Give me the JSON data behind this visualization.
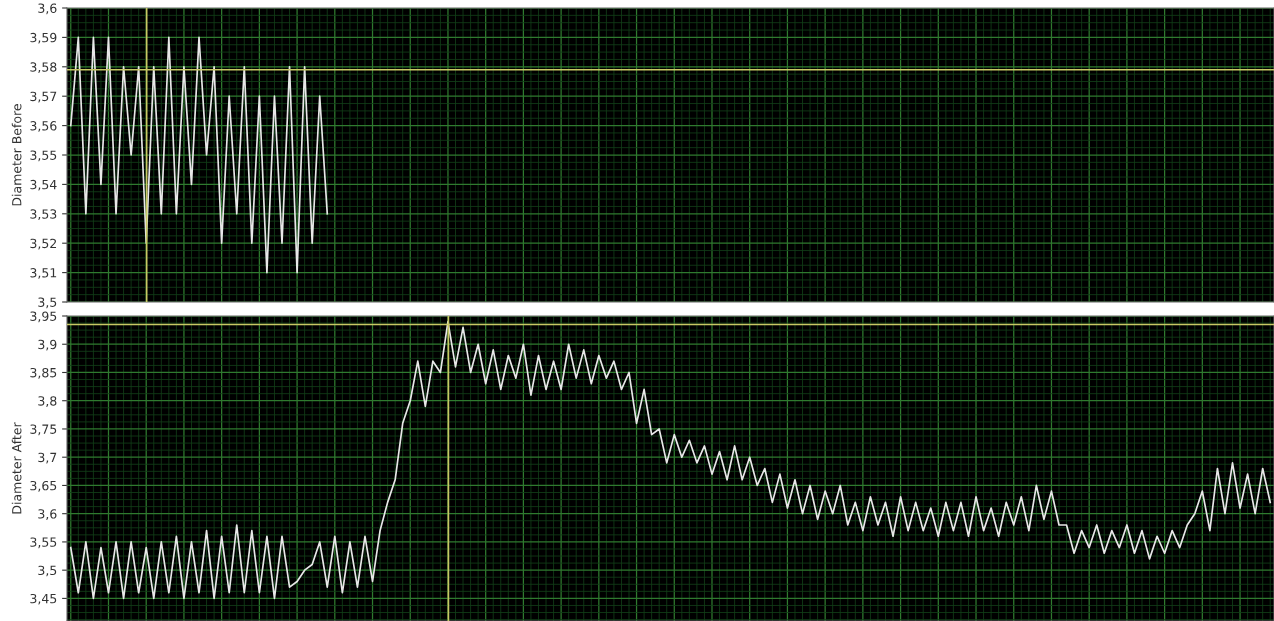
{
  "chart_data": [
    {
      "type": "line",
      "ylabel": "Diameter Before",
      "tick_labels": "y",
      "grid": true,
      "marker": "none",
      "line_style": "solid",
      "categories": [
        null,
        null,
        null,
        null,
        null,
        null,
        null,
        null,
        null,
        null,
        null,
        null,
        null,
        null,
        null,
        null,
        null,
        null,
        null,
        null,
        null,
        null,
        null,
        null,
        null,
        null,
        null,
        null,
        null,
        null,
        null,
        null,
        null,
        null,
        null,
        null,
        null,
        null,
        null,
        null,
        null,
        null,
        null,
        null,
        null,
        null,
        null,
        null,
        null,
        null,
        null,
        null,
        null,
        null,
        null,
        null,
        null,
        null,
        null,
        null,
        null,
        null,
        null,
        null,
        null,
        null,
        null,
        null,
        null,
        null,
        null,
        null,
        null,
        null,
        null,
        null,
        null,
        null,
        null,
        null,
        null,
        null,
        null,
        null,
        null,
        null,
        null,
        null,
        null,
        null,
        null,
        null,
        null,
        null,
        null,
        null,
        null,
        null,
        null,
        null,
        null,
        null,
        null,
        null,
        null,
        null,
        null,
        null,
        null,
        null,
        null,
        null,
        null,
        null,
        null,
        null,
        null,
        null,
        null,
        null,
        null,
        null,
        null,
        null,
        null,
        null,
        null,
        null,
        null,
        null,
        null,
        null,
        null,
        null,
        null,
        null,
        null,
        null,
        null,
        null,
        null,
        null,
        null,
        null,
        null,
        null,
        null,
        null,
        null,
        null,
        null,
        null,
        null,
        null,
        null,
        null,
        null,
        null,
        null,
        null
      ],
      "series": [
        {
          "color": "#e8e8e8",
          "values": [
            3.56,
            3.59,
            3.53,
            3.59,
            3.54,
            3.59,
            3.53,
            3.58,
            3.55,
            3.58,
            3.52,
            3.58,
            3.53,
            3.59,
            3.53,
            3.58,
            3.54,
            3.59,
            3.55,
            3.58,
            3.52,
            3.57,
            3.53,
            3.58,
            3.52,
            3.57,
            3.51,
            3.57,
            3.52,
            3.58,
            3.51,
            3.58,
            3.52,
            3.57,
            3.53,
            null,
            null,
            null,
            null,
            null,
            null,
            null,
            null,
            null,
            null,
            null,
            null,
            null,
            null,
            null,
            null,
            null,
            null,
            null,
            null,
            null,
            null,
            null,
            null,
            null,
            null,
            null,
            null,
            null,
            null,
            null,
            null,
            null,
            null,
            null,
            null,
            null,
            null,
            null,
            null,
            null,
            null,
            null,
            null,
            null,
            null,
            null,
            null,
            null,
            null,
            null,
            null,
            null,
            null,
            null,
            null,
            null,
            null,
            null,
            null,
            null,
            null,
            null,
            null,
            null,
            null,
            null,
            null,
            null,
            null,
            null,
            null,
            null,
            null,
            null,
            null,
            null,
            null,
            null,
            null,
            null,
            null,
            null,
            null,
            null,
            null,
            null,
            null,
            null,
            null,
            null,
            null,
            null,
            null,
            null,
            null,
            null,
            null,
            null,
            null,
            null,
            null,
            null,
            null,
            null,
            null,
            null,
            null,
            null,
            null,
            null,
            null,
            null,
            null,
            null,
            null,
            null,
            null,
            null,
            null,
            null,
            null,
            null,
            null,
            null
          ]
        }
      ],
      "ylim": [
        3.5,
        3.6
      ],
      "yticks": [
        {
          "value": 3.5,
          "label": "3,5"
        },
        {
          "value": 3.51,
          "label": "3,51"
        },
        {
          "value": 3.52,
          "label": "3,52"
        },
        {
          "value": 3.53,
          "label": "3,53"
        },
        {
          "value": 3.54,
          "label": "3,54"
        },
        {
          "value": 3.55,
          "label": "3,55"
        },
        {
          "value": 3.56,
          "label": "3,56"
        },
        {
          "value": 3.57,
          "label": "3,57"
        },
        {
          "value": 3.58,
          "label": "3,58"
        },
        {
          "value": 3.59,
          "label": "3,59"
        },
        {
          "value": 3.6,
          "label": "3,6"
        }
      ],
      "ref_lines": [
        {
          "axis": "y",
          "value": 3.579,
          "color": "#c8c864"
        }
      ]
    },
    {
      "type": "line",
      "ylabel": "Diameter After",
      "tick_labels": "y",
      "grid": true,
      "marker": "none",
      "line_style": "solid",
      "categories": [
        null,
        null,
        null,
        null,
        null,
        null,
        null,
        null,
        null,
        null,
        null,
        null,
        null,
        null,
        null,
        null,
        null,
        null,
        null,
        null,
        null,
        null,
        null,
        null,
        null,
        null,
        null,
        null,
        null,
        null,
        null,
        null,
        null,
        null,
        null,
        null,
        null,
        null,
        null,
        null,
        null,
        null,
        null,
        null,
        null,
        null,
        null,
        null,
        null,
        null,
        null,
        null,
        null,
        null,
        null,
        null,
        null,
        null,
        null,
        null,
        null,
        null,
        null,
        null,
        null,
        null,
        null,
        null,
        null,
        null,
        null,
        null,
        null,
        null,
        null,
        null,
        null,
        null,
        null,
        null,
        null,
        null,
        null,
        null,
        null,
        null,
        null,
        null,
        null,
        null,
        null,
        null,
        null,
        null,
        null,
        null,
        null,
        null,
        null,
        null,
        null,
        null,
        null,
        null,
        null,
        null,
        null,
        null,
        null,
        null,
        null,
        null,
        null,
        null,
        null,
        null,
        null,
        null,
        null,
        null,
        null,
        null,
        null,
        null,
        null,
        null,
        null,
        null,
        null,
        null,
        null,
        null,
        null,
        null,
        null,
        null,
        null,
        null,
        null,
        null,
        null,
        null,
        null,
        null,
        null,
        null,
        null,
        null,
        null,
        null,
        null,
        null,
        null,
        null,
        null,
        null,
        null,
        null,
        null,
        null
      ],
      "series": [
        {
          "color": "#e8e8e8",
          "values": [
            3.54,
            3.46,
            3.55,
            3.45,
            3.54,
            3.46,
            3.55,
            3.45,
            3.55,
            3.46,
            3.54,
            3.45,
            3.55,
            3.46,
            3.56,
            3.45,
            3.55,
            3.46,
            3.57,
            3.45,
            3.56,
            3.46,
            3.58,
            3.46,
            3.57,
            3.46,
            3.56,
            3.45,
            3.56,
            3.47,
            3.48,
            3.5,
            3.51,
            3.55,
            3.47,
            3.56,
            3.46,
            3.55,
            3.47,
            3.56,
            3.48,
            3.57,
            3.62,
            3.66,
            3.76,
            3.8,
            3.87,
            3.79,
            3.87,
            3.85,
            3.94,
            3.86,
            3.93,
            3.85,
            3.9,
            3.83,
            3.89,
            3.82,
            3.88,
            3.84,
            3.9,
            3.81,
            3.88,
            3.82,
            3.87,
            3.82,
            3.9,
            3.84,
            3.89,
            3.83,
            3.88,
            3.84,
            3.87,
            3.82,
            3.85,
            3.76,
            3.82,
            3.74,
            3.75,
            3.69,
            3.74,
            3.7,
            3.73,
            3.69,
            3.72,
            3.67,
            3.71,
            3.66,
            3.72,
            3.66,
            3.7,
            3.65,
            3.68,
            3.62,
            3.67,
            3.61,
            3.66,
            3.6,
            3.65,
            3.59,
            3.64,
            3.6,
            3.65,
            3.58,
            3.62,
            3.57,
            3.63,
            3.58,
            3.62,
            3.56,
            3.63,
            3.57,
            3.62,
            3.57,
            3.61,
            3.56,
            3.62,
            3.57,
            3.62,
            3.56,
            3.63,
            3.57,
            3.61,
            3.56,
            3.62,
            3.58,
            3.63,
            3.57,
            3.65,
            3.59,
            3.64,
            3.58,
            3.58,
            3.53,
            3.57,
            3.54,
            3.58,
            3.53,
            3.57,
            3.54,
            3.58,
            3.53,
            3.57,
            3.52,
            3.56,
            3.53,
            3.57,
            3.54,
            3.58,
            3.6,
            3.64,
            3.57,
            3.68,
            3.6,
            3.69,
            3.61,
            3.67,
            3.6,
            3.68,
            3.62
          ]
        }
      ],
      "ylim": [
        3.41,
        3.95
      ],
      "yticks": [
        {
          "value": 3.45,
          "label": "3,45"
        },
        {
          "value": 3.5,
          "label": "3,5"
        },
        {
          "value": 3.55,
          "label": "3,55"
        },
        {
          "value": 3.6,
          "label": "3,6"
        },
        {
          "value": 3.65,
          "label": "3,65"
        },
        {
          "value": 3.7,
          "label": "3,7"
        },
        {
          "value": 3.75,
          "label": "3,75"
        },
        {
          "value": 3.8,
          "label": "3,8"
        },
        {
          "value": 3.85,
          "label": "3,85"
        },
        {
          "value": 3.9,
          "label": "3,9"
        },
        {
          "value": 3.95,
          "label": "3,95"
        }
      ],
      "ref_lines": [
        {
          "axis": "y",
          "value": 3.935,
          "color": "#c8c864"
        }
      ]
    }
  ]
}
